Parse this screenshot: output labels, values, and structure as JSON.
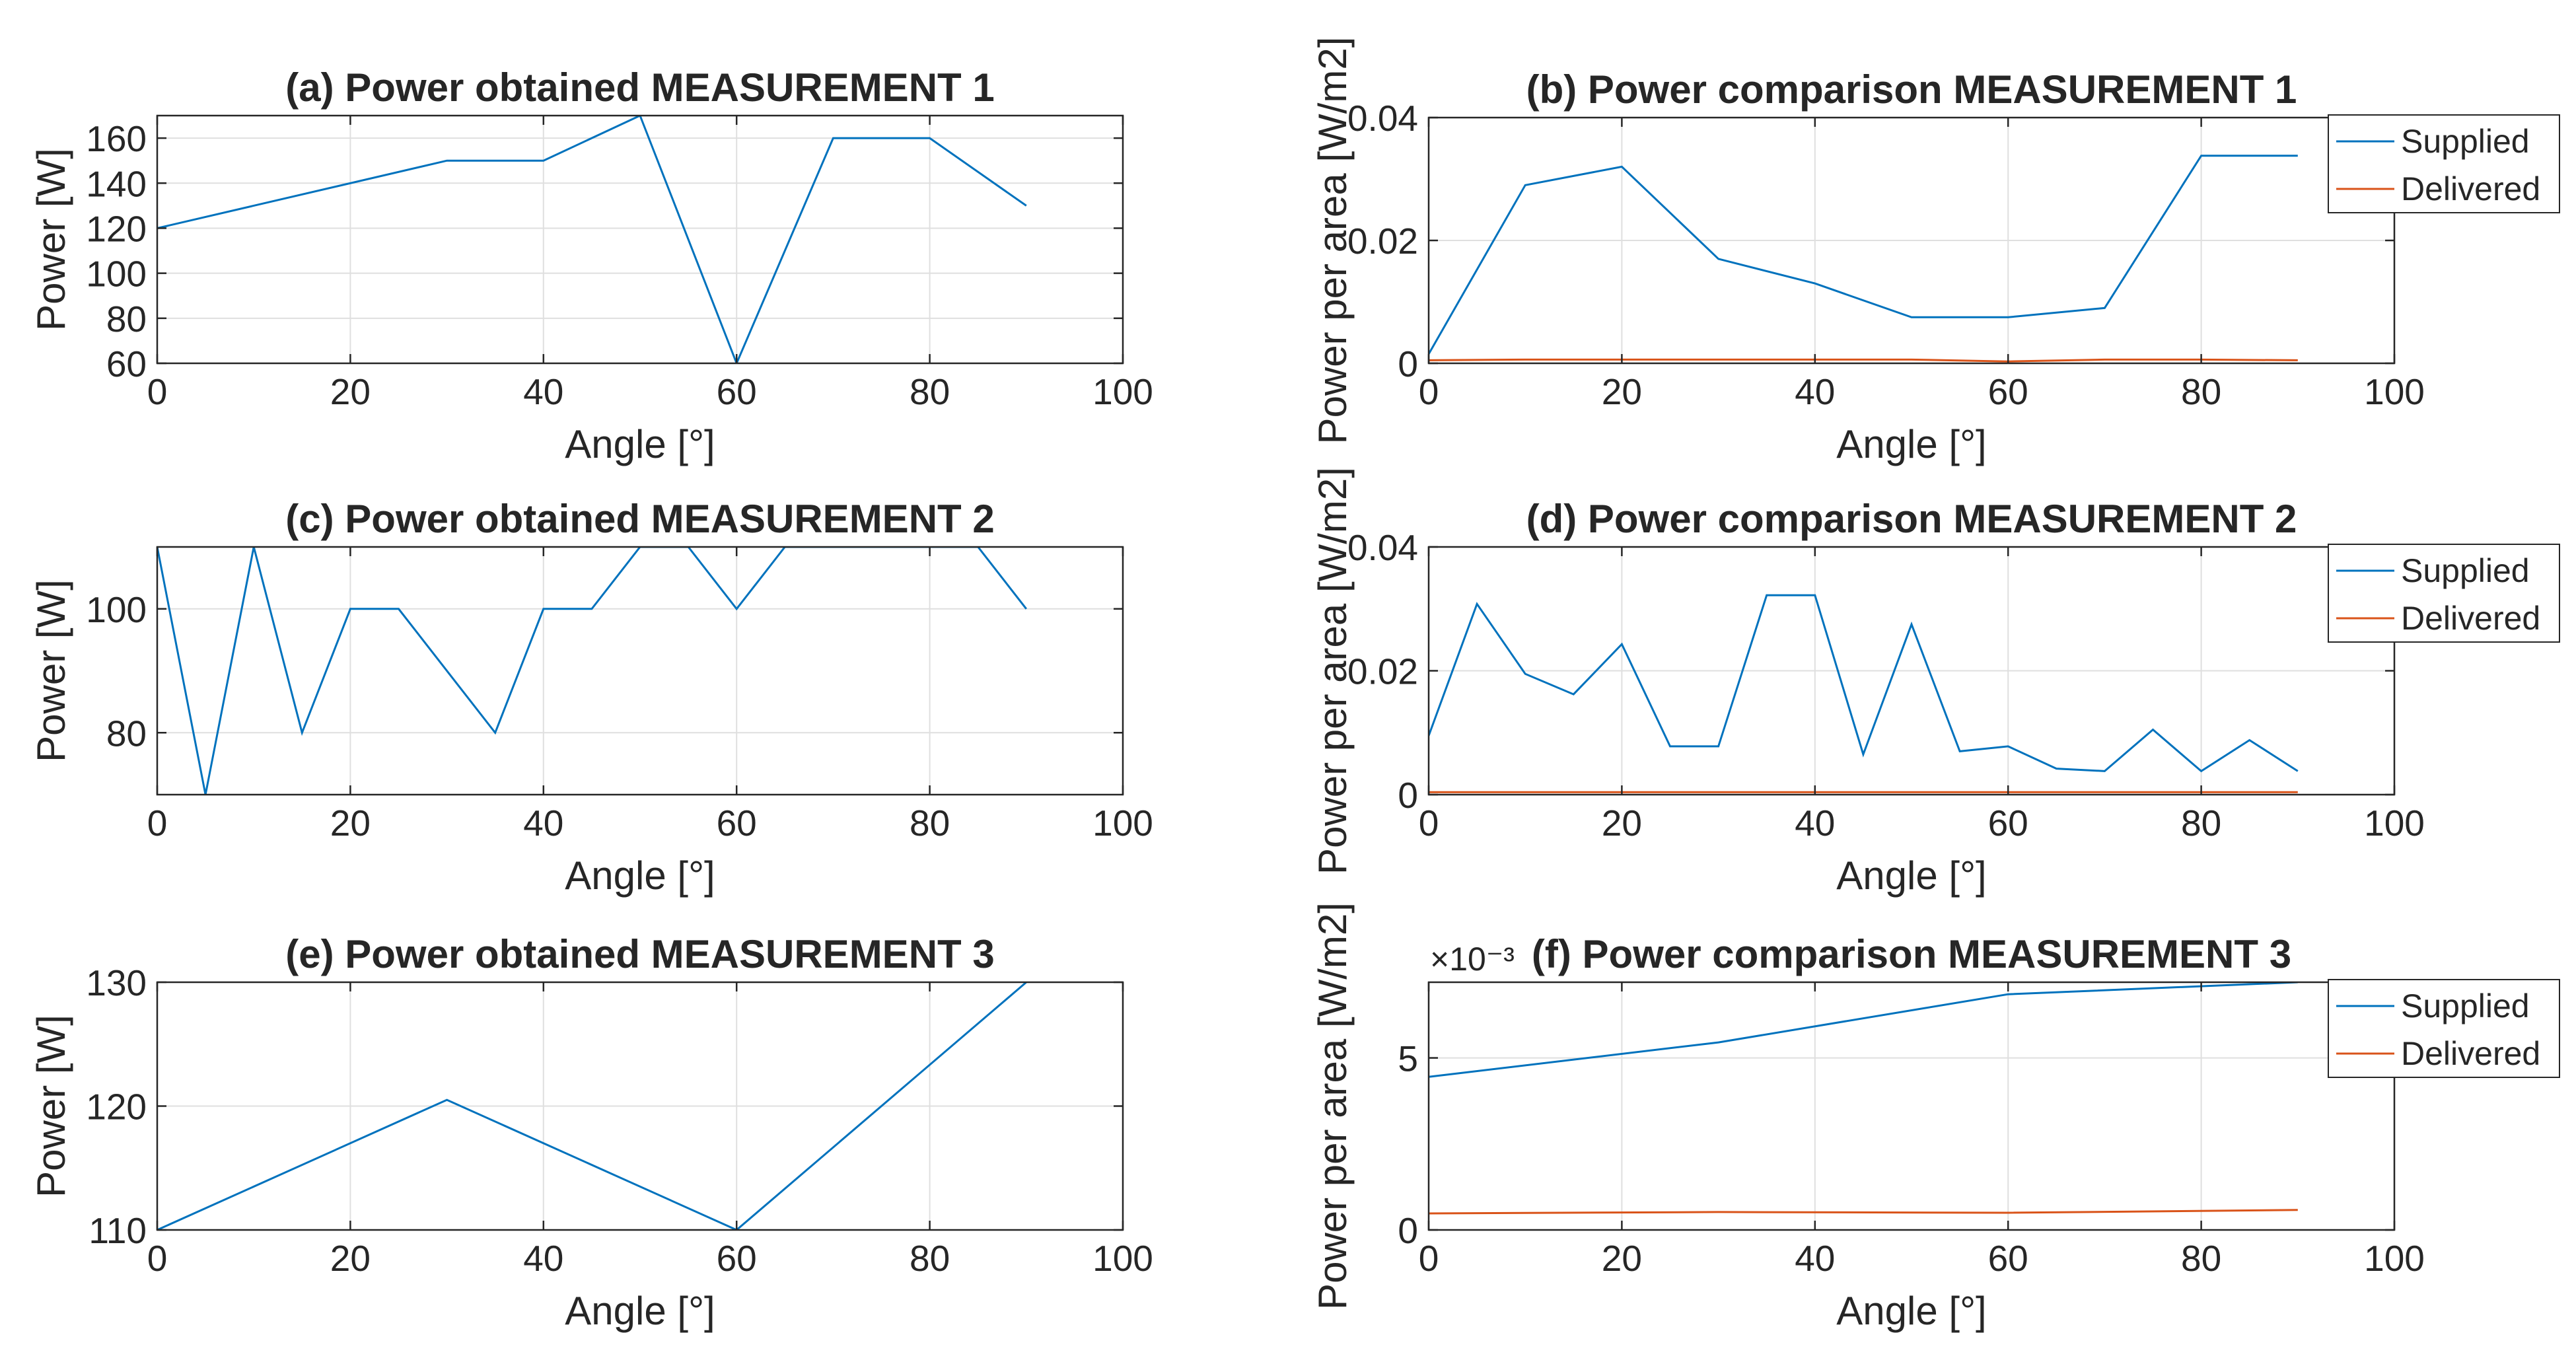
{
  "figure": {
    "background": "#ffffff"
  },
  "colors": {
    "supplied": "#0072BD",
    "delivered": "#D95319",
    "grid": "#dfdfdf",
    "axis": "#262626"
  },
  "chart_data": [
    {
      "id": "a",
      "type": "line",
      "title": "(a) Power obtained MEASUREMENT 1",
      "xlabel": "Angle [°]",
      "ylabel": "Power [W]",
      "xlim": [
        0,
        100
      ],
      "ylim": [
        60,
        170
      ],
      "xticks": [
        0,
        20,
        40,
        60,
        80,
        100
      ],
      "xtick_labels": [
        "0",
        "20",
        "40",
        "60",
        "80",
        "100"
      ],
      "yticks": [
        60,
        80,
        100,
        120,
        140,
        160
      ],
      "ytick_labels": [
        "60",
        "80",
        "100",
        "120",
        "140",
        "160"
      ],
      "grid": true,
      "series": [
        {
          "name": "Power",
          "x": [
            0,
            30,
            40,
            50,
            60,
            70,
            80,
            90
          ],
          "values": [
            120,
            150,
            150,
            170,
            60,
            160,
            160,
            130
          ]
        }
      ]
    },
    {
      "id": "b",
      "type": "line",
      "title": "(b) Power comparison MEASUREMENT 1",
      "xlabel": "Angle [°]",
      "ylabel": "Power per area [W/m2]",
      "xlim": [
        0,
        100
      ],
      "ylim": [
        0,
        0.04
      ],
      "xticks": [
        0,
        20,
        40,
        60,
        80,
        100
      ],
      "xtick_labels": [
        "0",
        "20",
        "40",
        "60",
        "80",
        "100"
      ],
      "yticks": [
        0,
        0.02,
        0.04
      ],
      "ytick_labels": [
        "0",
        "0.02",
        "0.04"
      ],
      "grid": true,
      "legend": "top-right",
      "series": [
        {
          "name": "Supplied",
          "x": [
            0,
            10,
            20,
            30,
            40,
            50,
            60,
            70,
            80,
            90
          ],
          "values": [
            0.0015,
            0.029,
            0.032,
            0.017,
            0.013,
            0.0075,
            0.0075,
            0.009,
            0.0338,
            0.0338
          ]
        },
        {
          "name": "Delivered",
          "x": [
            0,
            10,
            20,
            30,
            40,
            50,
            60,
            70,
            80,
            90
          ],
          "values": [
            0.0005,
            0.0006,
            0.0006,
            0.0006,
            0.0006,
            0.0006,
            0.0003,
            0.0006,
            0.0006,
            0.0005
          ]
        }
      ]
    },
    {
      "id": "c",
      "type": "line",
      "title": "(c) Power obtained MEASUREMENT 2",
      "xlabel": "Angle [°]",
      "ylabel": "Power [W]",
      "xlim": [
        0,
        100
      ],
      "ylim": [
        70,
        110
      ],
      "xticks": [
        0,
        20,
        40,
        60,
        80,
        100
      ],
      "xtick_labels": [
        "0",
        "20",
        "40",
        "60",
        "80",
        "100"
      ],
      "yticks": [
        80,
        100
      ],
      "ytick_labels": [
        "80",
        "100"
      ],
      "grid": true,
      "series": [
        {
          "name": "Power",
          "x": [
            0,
            5,
            10,
            15,
            20,
            25,
            35,
            40,
            45,
            50,
            55,
            60,
            65,
            70,
            75,
            80,
            85,
            90
          ],
          "values": [
            110,
            70,
            110,
            80,
            100,
            100,
            80,
            100,
            100,
            110,
            110,
            100,
            110,
            110,
            110,
            110,
            110,
            100
          ]
        }
      ]
    },
    {
      "id": "d",
      "type": "line",
      "title": "(d) Power comparison MEASUREMENT 2",
      "xlabel": "Angle [°]",
      "ylabel": "Power per area [W/m2]",
      "xlim": [
        0,
        100
      ],
      "ylim": [
        0,
        0.04
      ],
      "xticks": [
        0,
        20,
        40,
        60,
        80,
        100
      ],
      "xtick_labels": [
        "0",
        "20",
        "40",
        "60",
        "80",
        "100"
      ],
      "yticks": [
        0,
        0.02,
        0.04
      ],
      "ytick_labels": [
        "0",
        "0.02",
        "0.04"
      ],
      "grid": true,
      "legend": "top-right",
      "series": [
        {
          "name": "Supplied",
          "x": [
            0,
            5,
            10,
            15,
            20,
            25,
            30,
            35,
            40,
            45,
            50,
            55,
            60,
            65,
            70,
            75,
            80,
            85,
            90
          ],
          "values": [
            0.0095,
            0.0308,
            0.0195,
            0.0162,
            0.0243,
            0.0078,
            0.0078,
            0.0322,
            0.0322,
            0.0065,
            0.0275,
            0.007,
            0.0078,
            0.0042,
            0.0038,
            0.0105,
            0.0038,
            0.0088,
            0.0038
          ]
        },
        {
          "name": "Delivered",
          "x": [
            0,
            10,
            20,
            30,
            40,
            50,
            60,
            70,
            80,
            90
          ],
          "values": [
            0.0004,
            0.0004,
            0.0004,
            0.0004,
            0.0004,
            0.0004,
            0.0004,
            0.0004,
            0.0004,
            0.0004
          ]
        }
      ]
    },
    {
      "id": "e",
      "type": "line",
      "title": "(e) Power obtained MEASUREMENT 3",
      "xlabel": "Angle [°]",
      "ylabel": "Power [W]",
      "xlim": [
        0,
        100
      ],
      "ylim": [
        110,
        130
      ],
      "xticks": [
        0,
        20,
        40,
        60,
        80,
        100
      ],
      "xtick_labels": [
        "0",
        "20",
        "40",
        "60",
        "80",
        "100"
      ],
      "yticks": [
        110,
        120,
        130
      ],
      "ytick_labels": [
        "110",
        "120",
        "130"
      ],
      "grid": true,
      "series": [
        {
          "name": "Power",
          "x": [
            0,
            30,
            60,
            90
          ],
          "values": [
            110,
            120.5,
            110,
            130
          ]
        }
      ]
    },
    {
      "id": "f",
      "type": "line",
      "title": "(f) Power comparison MEASUREMENT 3",
      "exponent_label": "×10⁻³",
      "xlabel": "Angle [°]",
      "ylabel": "Power per area [W/m2]",
      "xlim": [
        0,
        100
      ],
      "ylim": [
        0,
        7.2
      ],
      "xticks": [
        0,
        20,
        40,
        60,
        80,
        100
      ],
      "xtick_labels": [
        "0",
        "20",
        "40",
        "60",
        "80",
        "100"
      ],
      "yticks": [
        0,
        5
      ],
      "ytick_labels": [
        "0",
        "5"
      ],
      "grid": true,
      "legend": "top-right",
      "series": [
        {
          "name": "Supplied",
          "x": [
            0,
            30,
            60,
            90
          ],
          "values": [
            4.45,
            5.45,
            6.85,
            7.2
          ]
        },
        {
          "name": "Delivered",
          "x": [
            0,
            30,
            60,
            90
          ],
          "values": [
            0.48,
            0.52,
            0.5,
            0.58
          ]
        }
      ]
    }
  ]
}
